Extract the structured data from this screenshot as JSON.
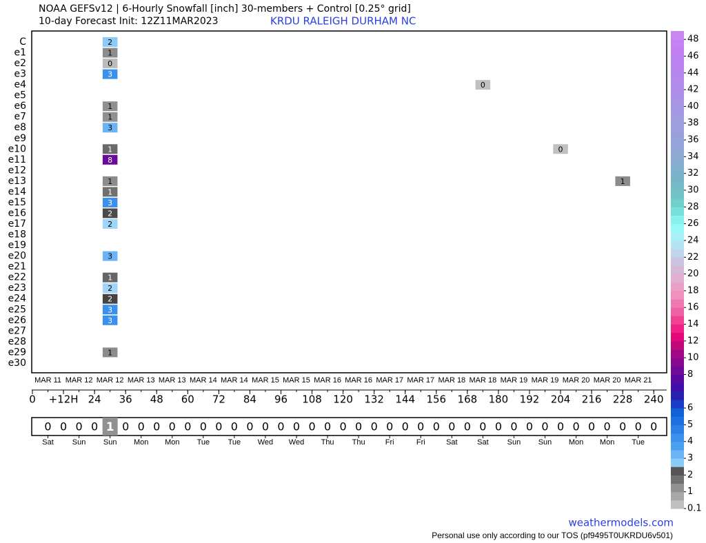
{
  "chart_data": {
    "type": "heatmap",
    "title": "NOAA GEFSv12 | 6-Hourly Snowfall [inch]  30-members + Control [0.25° grid]",
    "subtitle": "10-day Forecast Init: 12Z11MAR2023",
    "location": "KRDU  RALEIGH DURHAM  NC",
    "rows": [
      "C",
      "e1",
      "e2",
      "e3",
      "e4",
      "e5",
      "e6",
      "e7",
      "e8",
      "e9",
      "e10",
      "e11",
      "e12",
      "e13",
      "e14",
      "e15",
      "e16",
      "e17",
      "e18",
      "e19",
      "e20",
      "e21",
      "e22",
      "e23",
      "e24",
      "e25",
      "e26",
      "e27",
      "e28",
      "e29",
      "e30"
    ],
    "xlim": [
      0,
      245
    ],
    "xticks": [
      0,
      {
        "value": 12,
        "label": "+12H"
      },
      24,
      36,
      48,
      60,
      72,
      84,
      96,
      108,
      120,
      132,
      144,
      156,
      168,
      180,
      192,
      204,
      216,
      228,
      240
    ],
    "cells": [
      {
        "row": 0,
        "x": 30,
        "value": 2,
        "color": "#8ccaf8"
      },
      {
        "row": 1,
        "x": 30,
        "value": 1,
        "color": "#8c8c8c"
      },
      {
        "row": 2,
        "x": 30,
        "value": 0,
        "color": "#bbbbbb"
      },
      {
        "row": 3,
        "x": 30,
        "value": 3,
        "color": "#3a90ec"
      },
      {
        "row": 4,
        "x": 174,
        "value": 0,
        "color": "#c0c0c0"
      },
      {
        "row": 6,
        "x": 30,
        "value": 1,
        "color": "#909090"
      },
      {
        "row": 7,
        "x": 30,
        "value": 1,
        "color": "#909090"
      },
      {
        "row": 8,
        "x": 30,
        "value": 3,
        "color": "#6ab4f5"
      },
      {
        "row": 10,
        "x": 30,
        "value": 1,
        "color": "#6a6a6a"
      },
      {
        "row": 10,
        "x": 204,
        "value": 0,
        "color": "#c0c0c0"
      },
      {
        "row": 11,
        "x": 30,
        "value": 8,
        "color": "#6a0a9a"
      },
      {
        "row": 13,
        "x": 30,
        "value": 1,
        "color": "#8c8c8c"
      },
      {
        "row": 13,
        "x": 228,
        "value": 1,
        "color": "#8c8c8c"
      },
      {
        "row": 14,
        "x": 30,
        "value": 1,
        "color": "#707070"
      },
      {
        "row": 15,
        "x": 30,
        "value": 3,
        "color": "#3a90ec"
      },
      {
        "row": 16,
        "x": 30,
        "value": 2,
        "color": "#4a4a4a"
      },
      {
        "row": 17,
        "x": 30,
        "value": 2,
        "color": "#a0d4f8"
      },
      {
        "row": 20,
        "x": 30,
        "value": 3,
        "color": "#6ab4f5"
      },
      {
        "row": 22,
        "x": 30,
        "value": 1,
        "color": "#666666"
      },
      {
        "row": 23,
        "x": 30,
        "value": 2,
        "color": "#a0d4f8"
      },
      {
        "row": 24,
        "x": 30,
        "value": 2,
        "color": "#444444"
      },
      {
        "row": 25,
        "x": 30,
        "value": 3,
        "color": "#3a90ec"
      },
      {
        "row": 26,
        "x": 30,
        "value": 3,
        "color": "#3a90ec"
      },
      {
        "row": 29,
        "x": 30,
        "value": 1,
        "color": "#8c8c8c"
      }
    ],
    "date_labels": [
      "MAR 11",
      "MAR 12",
      "MAR 12",
      "MAR 13",
      "MAR 13",
      "MAR 14",
      "MAR 14",
      "MAR 15",
      "MAR 15",
      "MAR 16",
      "MAR 16",
      "MAR 17",
      "MAR 17",
      "MAR 18",
      "MAR 18",
      "MAR 19",
      "MAR 19",
      "MAR 20",
      "MAR 20",
      "MAR 21"
    ],
    "day_labels": [
      "Sat",
      "Sun",
      "Sun",
      "Mon",
      "Mon",
      "Tue",
      "Tue",
      "Wed",
      "Wed",
      "Thu",
      "Thu",
      "Fri",
      "Fri",
      "Sat",
      "Sat",
      "Sun",
      "Sun",
      "Mon",
      "Mon",
      "Tue"
    ],
    "summary": {
      "x": [
        6,
        12,
        18,
        24,
        30,
        36,
        42,
        48,
        54,
        60,
        66,
        72,
        78,
        84,
        90,
        96,
        102,
        108,
        114,
        120,
        126,
        132,
        138,
        144,
        150,
        156,
        162,
        168,
        174,
        180,
        186,
        192,
        198,
        204,
        210,
        216,
        222,
        228,
        234,
        240
      ],
      "values": [
        0,
        0,
        0,
        0,
        1,
        0,
        0,
        0,
        0,
        0,
        0,
        0,
        0,
        0,
        0,
        0,
        0,
        0,
        0,
        0,
        0,
        0,
        0,
        0,
        0,
        0,
        0,
        0,
        0,
        0,
        0,
        0,
        0,
        0,
        0,
        0,
        0,
        0,
        0,
        0
      ]
    },
    "colorbar": {
      "levels": [
        0.1,
        0.5,
        1,
        1.5,
        2,
        2.5,
        3,
        3.5,
        4,
        4.5,
        5,
        5.5,
        6,
        6.5,
        7,
        7.5,
        8,
        9,
        10,
        11,
        12,
        13,
        14,
        15,
        16,
        17,
        18,
        19,
        20,
        21,
        22,
        23,
        24,
        25,
        26,
        27,
        28,
        29,
        30,
        31,
        32,
        33,
        34,
        35,
        36,
        37,
        38,
        39,
        40,
        41,
        42,
        43,
        44,
        45,
        46,
        47,
        48
      ],
      "colors": [
        "#c0c0c0",
        "#a8a8a8",
        "#909090",
        "#707070",
        "#555555",
        "#8ccaf8",
        "#6ab4f5",
        "#4aa0f0",
        "#3a90ec",
        "#2a80e8",
        "#1e70e0",
        "#1060d8",
        "#1a3cc8",
        "#2a20b0",
        "#4010a8",
        "#5a08a0",
        "#700a98",
        "#880890",
        "#a00884",
        "#c00878",
        "#e0087a",
        "#f02086",
        "#f04094",
        "#f060a4",
        "#f078b0",
        "#f090bc",
        "#e8a0c8",
        "#e0b0d0",
        "#d8b8d8",
        "#ccc4e0",
        "#c0d4ec",
        "#b4e4f4",
        "#a8f0f8",
        "#98f8f8",
        "#88f0f0",
        "#78e0dc",
        "#70d0cc",
        "#70c4c8",
        "#74bcc8",
        "#78b4c8",
        "#80b0cc",
        "#88acd0",
        "#90a8d4",
        "#94a4d8",
        "#98a0dc",
        "#9ca0e0",
        "#a09ce0",
        "#a498e4",
        "#a894e4",
        "#ac90e8",
        "#b08cec",
        "#b488ec",
        "#b884f0",
        "#bc84f0",
        "#c080f0",
        "#c480f4",
        "#c888f4"
      ],
      "ticks": [
        0.1,
        1,
        2,
        3,
        4,
        5,
        6,
        8,
        10,
        12,
        14,
        16,
        18,
        20,
        22,
        24,
        26,
        28,
        30,
        32,
        34,
        36,
        38,
        40,
        42,
        44,
        46,
        48
      ]
    },
    "site": "weathermodels.com",
    "footer": "Personal use only according to our TOS (pf9495T0UKRDU6v501)"
  }
}
